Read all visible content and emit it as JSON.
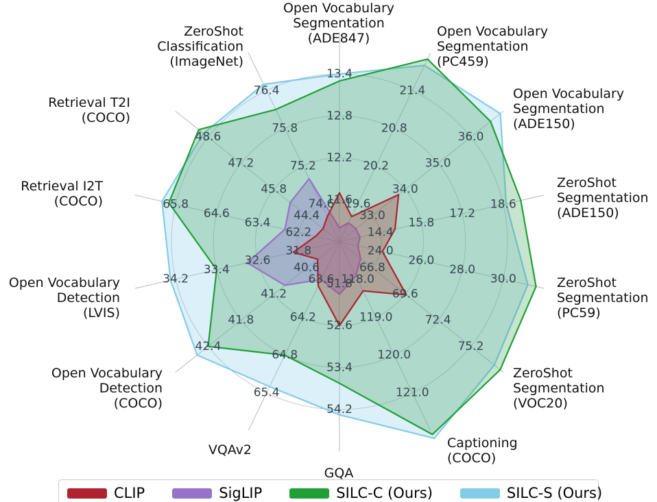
{
  "chart_data": {
    "type": "radar",
    "title": "",
    "grid": true,
    "rings_per_axis": 4,
    "legend_position": "bottom",
    "axes": [
      {
        "label": "Open Vocabulary Segmentation (ADE847)",
        "label_lines": [
          "Open Vocabulary",
          "Segmentation",
          "(ADE847)"
        ],
        "ticks": [
          11.6,
          12.2,
          12.8,
          13.4
        ]
      },
      {
        "label": "Open Vocabulary Segmentation (PC459)",
        "label_lines": [
          "Open Vocabulary",
          "Segmentation",
          "(PC459)"
        ],
        "ticks": [
          19.6,
          20.2,
          20.8,
          21.4
        ]
      },
      {
        "label": "Open Vocabulary Segmentation (ADE150)",
        "label_lines": [
          "Open Vocabulary",
          "Segmentation",
          "(ADE150)"
        ],
        "ticks": [
          33.0,
          34.0,
          35.0,
          36.0
        ]
      },
      {
        "label": "ZeroShot Segmentation (ADE150)",
        "label_lines": [
          "ZeroShot",
          "Segmentation",
          "(ADE150)"
        ],
        "ticks": [
          14.4,
          15.8,
          17.2,
          18.6
        ]
      },
      {
        "label": "ZeroShot Segmentation (PC59)",
        "label_lines": [
          "ZeroShot",
          "Segmentation",
          "(PC59)"
        ],
        "ticks": [
          24.0,
          26.0,
          28.0,
          30.0
        ]
      },
      {
        "label": "ZeroShot Segmentation (VOC20)",
        "label_lines": [
          "ZeroShot",
          "Segmentation",
          "(VOC20)"
        ],
        "ticks": [
          66.8,
          69.6,
          72.4,
          75.2
        ]
      },
      {
        "label": "Captioning (COCO)",
        "label_lines": [
          "Captioning",
          "(COCO)"
        ],
        "ticks": [
          118.0,
          119.0,
          120.0,
          121.0
        ]
      },
      {
        "label": "GQA",
        "label_lines": [
          "GQA"
        ],
        "ticks": [
          51.8,
          52.6,
          53.4,
          54.2
        ]
      },
      {
        "label": "VQAv2",
        "label_lines": [
          "VQAv2"
        ],
        "ticks": [
          63.6,
          64.2,
          64.8,
          65.4
        ]
      },
      {
        "label": "Open Vocabulary Detection (COCO)",
        "label_lines": [
          "Open Vocabulary",
          "Detection",
          "(COCO)"
        ],
        "ticks": [
          40.6,
          41.2,
          41.8,
          42.4
        ]
      },
      {
        "label": "Open Vocabulary Detection (LVIS)",
        "label_lines": [
          "Open Vocabulary",
          "Detection",
          "(LVIS)"
        ],
        "ticks": [
          31.8,
          32.6,
          33.4,
          34.2
        ]
      },
      {
        "label": "Retrieval I2T (COCO)",
        "label_lines": [
          "Retrieval I2T",
          "(COCO)"
        ],
        "ticks": [
          62.2,
          63.4,
          64.6,
          65.8
        ]
      },
      {
        "label": "Retrieval T2I (COCO)",
        "label_lines": [
          "Retrieval T2I",
          "(COCO)"
        ],
        "ticks": [
          44.4,
          45.8,
          47.2,
          48.6
        ]
      },
      {
        "label": "ZeroShot Classification (ImageNet)",
        "label_lines": [
          "ZeroShot",
          "Classification",
          "(ImageNet)"
        ],
        "ticks": [
          74.6,
          75.2,
          75.8,
          76.4
        ]
      }
    ],
    "series": [
      {
        "name": "CLIP",
        "color": "#b0222f",
        "fill": "rgba(170,55,55,0.32)",
        "values": [
          11.7,
          19.4,
          33.8,
          14.9,
          24.1,
          69.7,
          118.3,
          52.6,
          63.7,
          40.4,
          31.9,
          61.7,
          43.7,
          74.4
        ]
      },
      {
        "name": "SigLIP",
        "color": "#9673c8",
        "fill": "rgba(148,115,200,0.38)",
        "values": [
          11.2,
          19.3,
          32.5,
          13.7,
          22.9,
          65.8,
          117.9,
          52.0,
          63.6,
          41.0,
          32.8,
          62.6,
          45.1,
          75.0
        ]
      },
      {
        "name": "SILC-C (Ours)",
        "color": "#1f9f35",
        "fill": "rgba(70,165,95,0.30)",
        "values": [
          13.3,
          21.9,
          36.6,
          19.2,
          31.6,
          77.7,
          122.1,
          53.7,
          64.8,
          42.4,
          33.4,
          66.0,
          49.0,
          76.1
        ]
      },
      {
        "name": "SILC-S (Ours)",
        "color": "#82cce9",
        "fill": "rgba(135,206,235,0.30)",
        "values": [
          13.4,
          21.8,
          36.9,
          18.7,
          31.2,
          77.2,
          122.2,
          54.3,
          65.3,
          42.6,
          34.3,
          66.2,
          48.8,
          76.5
        ]
      }
    ]
  },
  "colors": {
    "grid": "#c6c6c6",
    "spoke": "#b8b8b8",
    "tick_text": "#36474f",
    "label_text": "#111111",
    "legend_border": "#cccccc",
    "background": "#ffffff"
  }
}
